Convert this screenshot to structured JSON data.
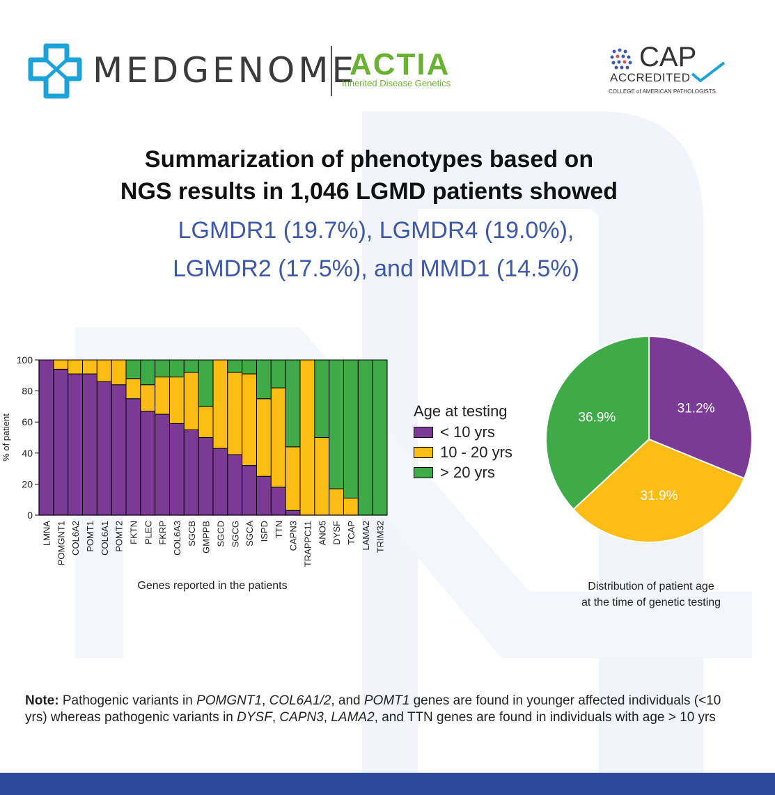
{
  "header": {
    "brand_name": "MEDGENOME",
    "partner_name": "ACTIA",
    "partner_tagline": "Inherited Disease Genetics",
    "accreditation_mark": "CAP",
    "accreditation_label": "ACCREDITED",
    "accreditation_org": "COLLEGE of AMERICAN PATHOLOGISTS"
  },
  "headline": {
    "line1": "Summarization of phenotypes based on",
    "line2": "NGS results in 1,046 LGMD patients showed",
    "line3": "LGMDR1 (19.7%), LGMDR4 (19.0%),",
    "line4": "LGMDR2 (17.5%), and MMD1 (14.5%)"
  },
  "legend": {
    "title": "Age at testing",
    "items": [
      "< 10 yrs",
      "10 - 20 yrs",
      "> 20 yrs"
    ]
  },
  "colors": {
    "under10": "#7b3a96",
    "10to20": "#fbbd14",
    "over20": "#3faa48",
    "highlight": "#3d58a6",
    "footer": "#2f4a9c"
  },
  "chart_data": [
    {
      "type": "bar",
      "stacked": true,
      "xlabel": "Genes reported in the patients",
      "ylabel": "% of patient",
      "ylim": [
        0,
        100
      ],
      "yticks": [
        0,
        20,
        40,
        60,
        80,
        100
      ],
      "categories": [
        "LMNA",
        "POMGNT1",
        "COL6A2",
        "POMT1",
        "COL6A1",
        "POMT2",
        "FKTN",
        "PLEC",
        "FKRP",
        "COL6A3",
        "SGCB",
        "GMPPB",
        "SGCD",
        "SGCG",
        "SGCA",
        "ISPD",
        "TTN",
        "CAPN3",
        "TRAPPC11",
        "ANO5",
        "DYSF",
        "TCAP",
        "LAMA2",
        "TRIM32"
      ],
      "series": [
        {
          "name": "< 10 yrs",
          "values": [
            100,
            94,
            91,
            91,
            86,
            84,
            75,
            67,
            65,
            59,
            55,
            50,
            43,
            39,
            32,
            25,
            18,
            3,
            0,
            0,
            0,
            0,
            0,
            0
          ]
        },
        {
          "name": "10 - 20 yrs",
          "values": [
            0,
            6,
            9,
            9,
            14,
            16,
            13,
            17,
            24,
            30,
            37,
            20,
            57,
            53,
            59,
            50,
            64,
            41,
            100,
            50,
            17,
            11,
            0,
            0
          ]
        },
        {
          "name": "> 20 yrs",
          "values": [
            0,
            0,
            0,
            0,
            0,
            0,
            12,
            16,
            11,
            11,
            8,
            30,
            0,
            8,
            9,
            25,
            18,
            56,
            0,
            50,
            83,
            89,
            100,
            100
          ]
        }
      ]
    },
    {
      "type": "pie",
      "title": "Distribution of patient age at the time of genetic testing",
      "title_line1": "Distribution of patient age",
      "title_line2": "at the time of genetic testing",
      "labels": [
        "< 10 yrs",
        "10 - 20 yrs",
        "> 20 yrs"
      ],
      "values": [
        31.2,
        31.9,
        36.9
      ],
      "data_labels": [
        "31.2%",
        "31.9%",
        "36.9%"
      ]
    }
  ],
  "note": {
    "label": "Note:",
    "t1": " Pathogenic variants in ",
    "g1": "POMGNT1",
    "t2": ", ",
    "g2": "COL6A1/2",
    "t3": ", and ",
    "g3": "POMT1",
    "t4": " genes are found in younger affected individuals (<10 yrs) whereas pathogenic variants in ",
    "g4": "DYSF",
    "t5": ", ",
    "g5": "CAPN3",
    "t6": ", ",
    "g6": "LAMA2",
    "t7": ", and TTN genes are found in individuals with age > 10 yrs"
  }
}
